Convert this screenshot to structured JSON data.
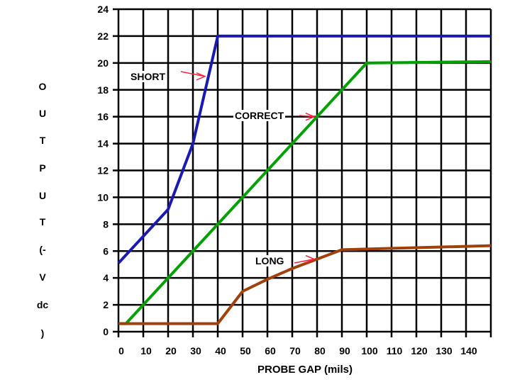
{
  "chart_data": {
    "type": "line",
    "title": "",
    "xlabel": "PROBE GAP (mils)",
    "ylabel_letters": [
      "O",
      "U",
      "T",
      "P",
      "U",
      "T",
      "(-",
      "V",
      "dc",
      ")"
    ],
    "xlim": [
      0,
      150
    ],
    "ylim": [
      0,
      24
    ],
    "grid": true,
    "x_ticks": [
      "0",
      "10",
      "20",
      "30",
      "40",
      "50",
      "60",
      "70",
      "80",
      "90",
      "100",
      "110",
      "120",
      "130",
      "140"
    ],
    "y_ticks": [
      "0",
      "2",
      "4",
      "6",
      "8",
      "10",
      "12",
      "14",
      "16",
      "18",
      "20",
      "22",
      "24"
    ],
    "series": [
      {
        "name": "SHORT",
        "color": "#1a1ab0",
        "x": [
          0,
          20,
          30,
          40,
          150
        ],
        "y": [
          5.1,
          9.1,
          14,
          22,
          22
        ]
      },
      {
        "name": "CORRECT",
        "color": "#00a000",
        "x": [
          0,
          3,
          100,
          150
        ],
        "y": [
          0.6,
          0.6,
          20,
          20.1
        ]
      },
      {
        "name": "LONG",
        "color": "#a0400a",
        "x": [
          0,
          40,
          50,
          60,
          70,
          80,
          90,
          100,
          150
        ],
        "y": [
          0.6,
          0.6,
          3.0,
          3.9,
          4.7,
          5.4,
          6.1,
          6.15,
          6.4
        ]
      }
    ],
    "annotations": [
      {
        "text": "SHORT",
        "arrow_to": [
          36,
          19
        ]
      },
      {
        "text": "CORRECT",
        "arrow_to": [
          80,
          16
        ]
      },
      {
        "text": "LONG",
        "arrow_to": [
          80,
          5.4
        ]
      }
    ],
    "arrow_color": "#ff2040"
  }
}
